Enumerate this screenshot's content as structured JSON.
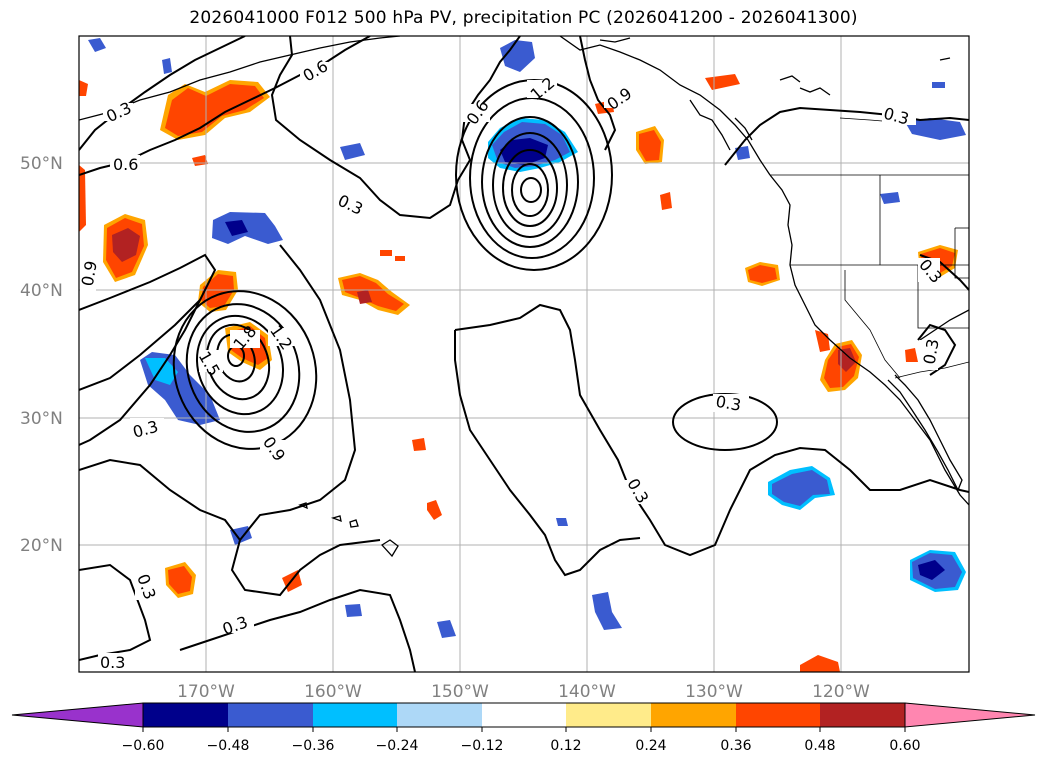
{
  "title": "2026041000 F012 500 hPa PV, precipitation PC (2026041200 - 2026041300)",
  "map": {
    "lon_labels": [
      "170°W",
      "160°W",
      "150°W",
      "140°W",
      "130°W",
      "120°W"
    ],
    "lat_labels": [
      "50°N",
      "40°N",
      "30°N",
      "20°N"
    ],
    "contour_labels": [
      "0.3",
      "0.6",
      "0.9",
      "1.2",
      "1.5",
      "1.8"
    ]
  },
  "colorbar": {
    "ticks": [
      "−0.60",
      "−0.48",
      "−0.36",
      "−0.24",
      "−0.12",
      "0.12",
      "0.24",
      "0.36",
      "0.48",
      "0.60"
    ],
    "colors": [
      "#9932cc",
      "#00008b",
      "#3a5bd0",
      "#00bfff",
      "#add8f7",
      "#ffffff",
      "#ffeb8a",
      "#ffa500",
      "#ff4500",
      "#b22222",
      "#ff86b0"
    ]
  },
  "colors": {
    "grid": "#b0b0b0",
    "coast": "#000000",
    "contour": "#000000"
  }
}
